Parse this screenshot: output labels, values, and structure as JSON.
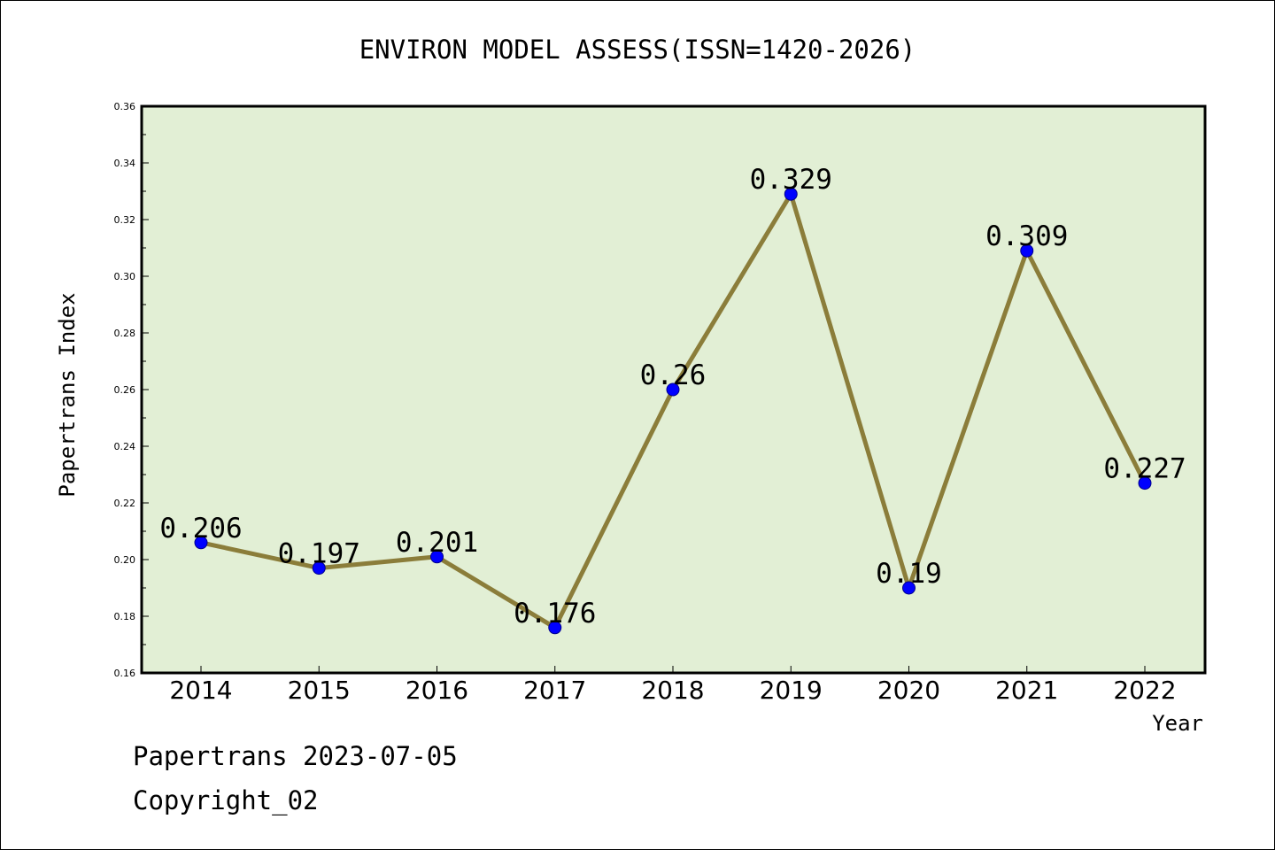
{
  "chart_data": {
    "type": "line",
    "title": "ENVIRON MODEL ASSESS(ISSN=1420-2026)",
    "xlabel": "Year",
    "ylabel": "Papertrans Index",
    "categories": [
      "2014",
      "2015",
      "2016",
      "2017",
      "2018",
      "2019",
      "2020",
      "2021",
      "2022"
    ],
    "values": [
      0.206,
      0.197,
      0.201,
      0.176,
      0.26,
      0.329,
      0.19,
      0.309,
      0.227
    ],
    "data_labels": [
      "0.206",
      "0.197",
      "0.201",
      "0.176",
      "0.26",
      "0.329",
      "0.19",
      "0.309",
      "0.227"
    ],
    "ylim": [
      0.16,
      0.36
    ],
    "yticks": [
      "0.16",
      "0.18",
      "0.20",
      "0.22",
      "0.24",
      "0.26",
      "0.28",
      "0.30",
      "0.32",
      "0.34",
      "0.36"
    ],
    "grid": false,
    "line_color": "#8b7d3a",
    "marker_color": "#0000ff",
    "plot_background": "#e2efd5"
  },
  "footer": {
    "line1": "Papertrans 2023-07-05",
    "line2": "Copyright_02"
  }
}
